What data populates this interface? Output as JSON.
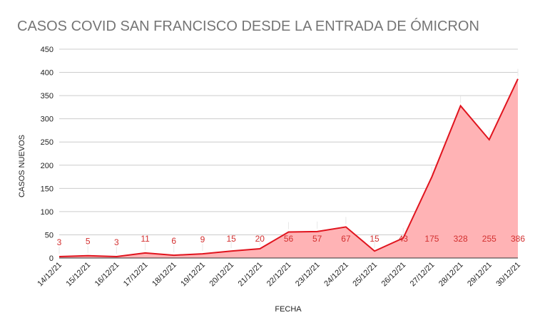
{
  "chart_data": {
    "type": "area",
    "title": "CASOS COVID SAN FRANCISCO DESDE LA ENTRADA DE ÓMICRON",
    "xlabel": "FECHA",
    "ylabel": "CASOS NUEVOS",
    "categories": [
      "14/12/21",
      "15/12/21",
      "16/12/21",
      "17/12/21",
      "18/12/21",
      "19/12/21",
      "20/12/21",
      "21/12/21",
      "22/12/21",
      "23/12/21",
      "24/12/21",
      "25/12/21",
      "26/12/21",
      "27/12/21",
      "28/12/21",
      "29/12/21",
      "30/12/21"
    ],
    "values": [
      3,
      5,
      3,
      11,
      6,
      9,
      15,
      20,
      56,
      57,
      67,
      15,
      43,
      175,
      328,
      255,
      386
    ],
    "ylim": [
      0,
      450
    ],
    "yticks": [
      0,
      50,
      100,
      150,
      200,
      250,
      300,
      350,
      400,
      450
    ],
    "grid": true,
    "data_labels": true,
    "colors": {
      "line": "#e0141e",
      "fill": "#ffb3b5",
      "labels": "#d32f2f"
    }
  }
}
